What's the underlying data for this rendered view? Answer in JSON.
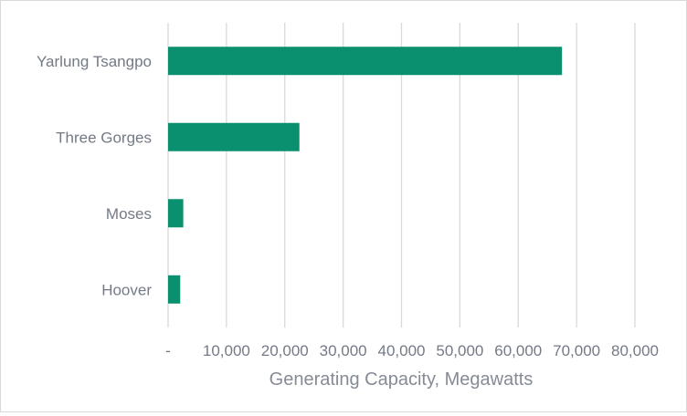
{
  "chart_data": {
    "type": "bar",
    "orientation": "horizontal",
    "categories": [
      "Yarlung Tsangpo",
      "Three Gorges",
      "Moses",
      "Hoover"
    ],
    "values": [
      67500,
      22500,
      2600,
      2080
    ],
    "xlabel": "Generating Capacity, Megawatts",
    "xlim": [
      0,
      80000
    ],
    "x_ticks": [
      0,
      10000,
      20000,
      30000,
      40000,
      50000,
      60000,
      70000,
      80000
    ],
    "x_tick_labels": [
      "-",
      "10,000",
      "20,000",
      "30,000",
      "40,000",
      "50,000",
      "60,000",
      "70,000",
      "80,000"
    ],
    "grid": true,
    "bar_color": "#0a906e",
    "grid_color": "#d9d9d9",
    "text_color": "#737a85"
  }
}
